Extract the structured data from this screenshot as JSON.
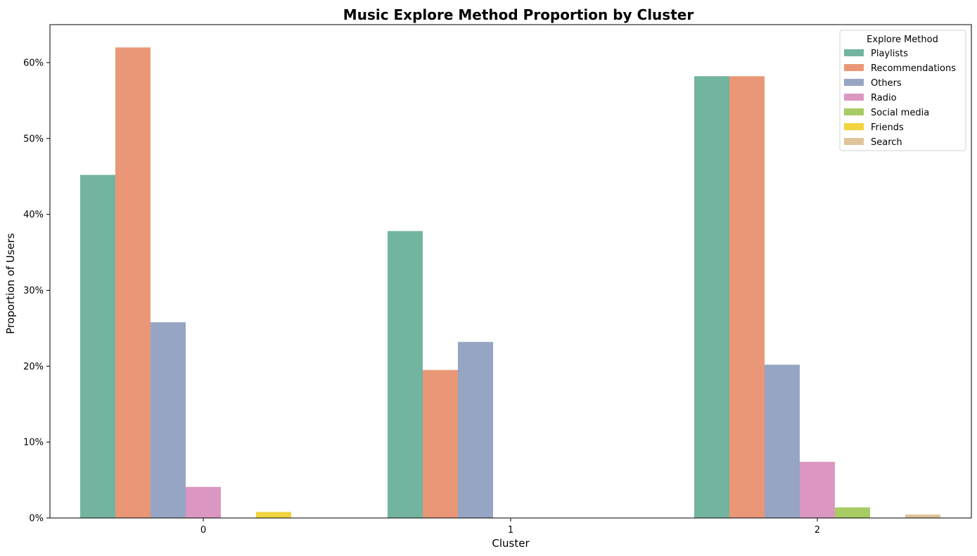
{
  "chart_data": {
    "type": "bar",
    "title": "Music Explore Method Proportion by Cluster",
    "xlabel": "Cluster",
    "ylabel": "Proportion of Users",
    "categories": [
      "0",
      "1",
      "2"
    ],
    "y_ticks": [
      0,
      10,
      20,
      30,
      40,
      50,
      60
    ],
    "y_tick_labels": [
      "0%",
      "10%",
      "20%",
      "30%",
      "40%",
      "50%",
      "60%"
    ],
    "ylim": [
      0,
      65
    ],
    "grid": false,
    "legend": {
      "title": "Explore Method",
      "placement": "top-right"
    },
    "series": [
      {
        "name": "Playlists",
        "color": "#73b4a0",
        "values": [
          45.2,
          37.8,
          58.2
        ]
      },
      {
        "name": "Recommendations",
        "color": "#e99776",
        "values": [
          62.0,
          19.5,
          58.2
        ]
      },
      {
        "name": "Others",
        "color": "#96a5c3",
        "values": [
          25.8,
          23.2,
          20.2
        ]
      },
      {
        "name": "Radio",
        "color": "#db97c1",
        "values": [
          4.1,
          0,
          7.4
        ]
      },
      {
        "name": "Social media",
        "color": "#a7cc63",
        "values": [
          0,
          0,
          1.4
        ]
      },
      {
        "name": "Friends",
        "color": "#f1d43f",
        "values": [
          0.8,
          0,
          0
        ]
      },
      {
        "name": "Search",
        "color": "#dfc49a",
        "values": [
          0,
          0,
          0.45
        ]
      }
    ]
  }
}
